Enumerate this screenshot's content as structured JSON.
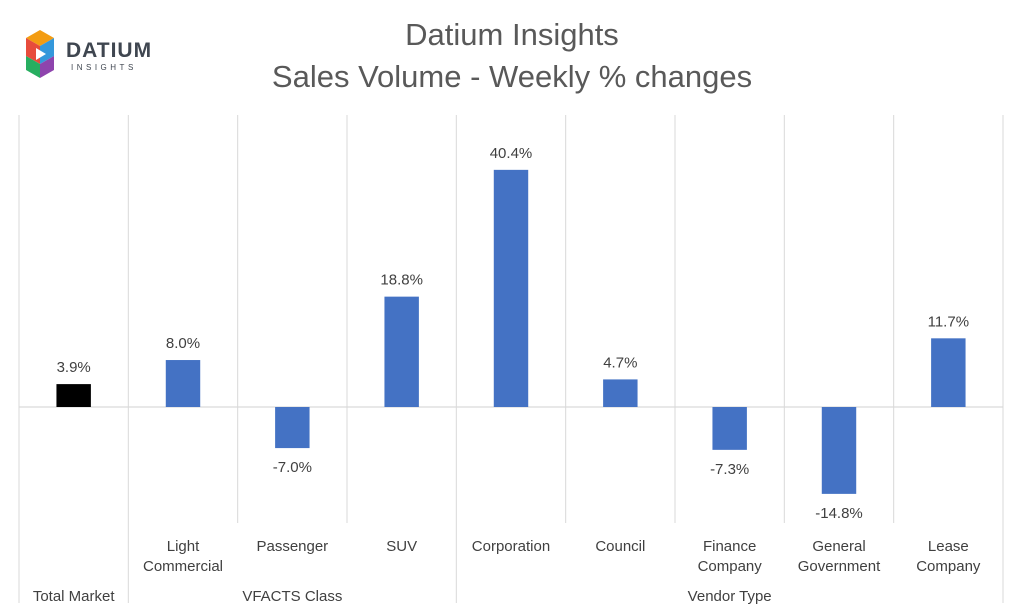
{
  "logo": {
    "word": "DATIUM",
    "sub": "INSIGHTS"
  },
  "chart_data": {
    "type": "bar",
    "title": "Datium Insights",
    "subtitle": "Sales Volume - Weekly % changes",
    "categories": [
      "Total Market",
      "Light Commercial",
      "Passenger",
      "SUV",
      "Corporation",
      "Council",
      "Finance Company",
      "General Government",
      "Lease Company"
    ],
    "category_lines": [
      [
        "Total Market"
      ],
      [
        "Light",
        "Commercial"
      ],
      [
        "Passenger"
      ],
      [
        "SUV"
      ],
      [
        "Corporation"
      ],
      [
        "Council"
      ],
      [
        "Finance",
        "Company"
      ],
      [
        "General",
        "Government"
      ],
      [
        "Lease",
        "Company"
      ]
    ],
    "values": [
      3.9,
      8.0,
      -7.0,
      18.8,
      40.4,
      4.7,
      -7.3,
      -14.8,
      11.7
    ],
    "data_labels": [
      "3.9%",
      "8.0%",
      "-7.0%",
      "18.8%",
      "40.4%",
      "4.7%",
      "-7.3%",
      "-14.8%",
      "11.7%"
    ],
    "groups": [
      {
        "label": "",
        "start": 0,
        "end": 0
      },
      {
        "label": "VFACTS Class",
        "start": 1,
        "end": 3
      },
      {
        "label": "Vendor Type",
        "start": 4,
        "end": 8
      }
    ],
    "bar_colors": [
      "#000000",
      "#4472C4",
      "#4472C4",
      "#4472C4",
      "#4472C4",
      "#4472C4",
      "#4472C4",
      "#4472C4",
      "#4472C4"
    ],
    "ylim": [
      -22,
      50
    ],
    "grid": false,
    "legend": "none"
  }
}
